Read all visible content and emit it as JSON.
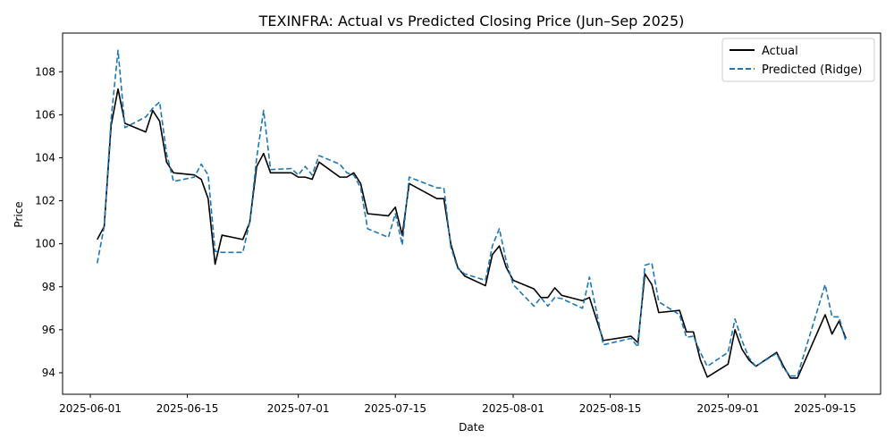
{
  "chart_data": {
    "type": "line",
    "title": "TEXINFRA: Actual vs Predicted Closing Price (Jun–Sep 2025)",
    "xlabel": "Date",
    "ylabel": "Price",
    "x_ticks": [
      "2025-06-01",
      "2025-06-15",
      "2025-07-01",
      "2025-07-15",
      "2025-08-01",
      "2025-08-15",
      "2025-09-01",
      "2025-09-15"
    ],
    "y_ticks": [
      94,
      96,
      98,
      100,
      102,
      104,
      106,
      108
    ],
    "xlim": [
      "2025-05-28",
      "2025-09-23"
    ],
    "ylim": [
      93.0,
      109.8
    ],
    "grid": false,
    "legend_position": "top-right",
    "series": [
      {
        "name": "Actual",
        "color": "#000000",
        "style": "solid",
        "x": [
          "2025-06-02",
          "2025-06-03",
          "2025-06-04",
          "2025-06-05",
          "2025-06-06",
          "2025-06-09",
          "2025-06-10",
          "2025-06-11",
          "2025-06-12",
          "2025-06-13",
          "2025-06-16",
          "2025-06-17",
          "2025-06-18",
          "2025-06-19",
          "2025-06-20",
          "2025-06-23",
          "2025-06-24",
          "2025-06-25",
          "2025-06-26",
          "2025-06-27",
          "2025-06-30",
          "2025-07-01",
          "2025-07-02",
          "2025-07-03",
          "2025-07-04",
          "2025-07-07",
          "2025-07-08",
          "2025-07-09",
          "2025-07-10",
          "2025-07-11",
          "2025-07-14",
          "2025-07-15",
          "2025-07-16",
          "2025-07-17",
          "2025-07-21",
          "2025-07-22",
          "2025-07-23",
          "2025-07-24",
          "2025-07-25",
          "2025-07-28",
          "2025-07-29",
          "2025-07-30",
          "2025-07-31",
          "2025-08-01",
          "2025-08-04",
          "2025-08-05",
          "2025-08-06",
          "2025-08-07",
          "2025-08-08",
          "2025-08-11",
          "2025-08-12",
          "2025-08-14",
          "2025-08-18",
          "2025-08-19",
          "2025-08-20",
          "2025-08-21",
          "2025-08-22",
          "2025-08-25",
          "2025-08-26",
          "2025-08-27",
          "2025-08-28",
          "2025-08-29",
          "2025-09-01",
          "2025-09-02",
          "2025-09-03",
          "2025-09-04",
          "2025-09-05",
          "2025-09-08",
          "2025-09-09",
          "2025-09-10",
          "2025-09-11",
          "2025-09-15",
          "2025-09-16",
          "2025-09-17",
          "2025-09-18"
        ],
        "y": [
          100.2,
          100.8,
          105.5,
          107.2,
          105.6,
          105.2,
          106.2,
          105.7,
          103.8,
          103.3,
          103.2,
          103.0,
          102.1,
          99.05,
          100.4,
          100.2,
          101.0,
          103.6,
          104.2,
          103.3,
          103.3,
          103.1,
          103.1,
          103.0,
          103.8,
          103.1,
          103.1,
          103.3,
          102.8,
          101.4,
          101.3,
          101.7,
          100.4,
          102.8,
          102.1,
          102.1,
          100.0,
          98.9,
          98.5,
          98.05,
          99.5,
          99.9,
          98.9,
          98.3,
          97.9,
          97.5,
          97.5,
          97.95,
          97.6,
          97.35,
          97.5,
          95.5,
          95.7,
          95.4,
          98.6,
          98.1,
          96.8,
          96.9,
          95.9,
          95.9,
          94.6,
          93.8,
          94.4,
          96.0,
          95.1,
          94.6,
          94.3,
          94.95,
          94.3,
          93.75,
          93.75,
          96.7,
          95.8,
          96.4,
          95.6
        ]
      },
      {
        "name": "Predicted (Ridge)",
        "color": "#1f77b4",
        "style": "dashed",
        "x": [
          "2025-06-02",
          "2025-06-03",
          "2025-06-04",
          "2025-06-05",
          "2025-06-06",
          "2025-06-09",
          "2025-06-10",
          "2025-06-11",
          "2025-06-12",
          "2025-06-13",
          "2025-06-16",
          "2025-06-17",
          "2025-06-18",
          "2025-06-19",
          "2025-06-20",
          "2025-06-23",
          "2025-06-24",
          "2025-06-25",
          "2025-06-26",
          "2025-06-27",
          "2025-06-30",
          "2025-07-01",
          "2025-07-02",
          "2025-07-03",
          "2025-07-04",
          "2025-07-07",
          "2025-07-08",
          "2025-07-09",
          "2025-07-10",
          "2025-07-11",
          "2025-07-14",
          "2025-07-15",
          "2025-07-16",
          "2025-07-17",
          "2025-07-21",
          "2025-07-22",
          "2025-07-23",
          "2025-07-24",
          "2025-07-25",
          "2025-07-28",
          "2025-07-29",
          "2025-07-30",
          "2025-07-31",
          "2025-08-01",
          "2025-08-04",
          "2025-08-05",
          "2025-08-06",
          "2025-08-07",
          "2025-08-08",
          "2025-08-11",
          "2025-08-12",
          "2025-08-14",
          "2025-08-18",
          "2025-08-19",
          "2025-08-20",
          "2025-08-21",
          "2025-08-22",
          "2025-08-25",
          "2025-08-26",
          "2025-08-27",
          "2025-08-28",
          "2025-08-29",
          "2025-09-01",
          "2025-09-02",
          "2025-09-03",
          "2025-09-04",
          "2025-09-05",
          "2025-09-08",
          "2025-09-09",
          "2025-09-10",
          "2025-09-11",
          "2025-09-15",
          "2025-09-16",
          "2025-09-17",
          "2025-09-18"
        ],
        "y": [
          99.1,
          100.8,
          105.8,
          109.0,
          105.4,
          105.9,
          106.3,
          106.6,
          104.2,
          102.9,
          103.1,
          103.7,
          103.2,
          99.65,
          99.6,
          99.6,
          101.0,
          104.0,
          106.2,
          103.45,
          103.5,
          103.2,
          103.6,
          103.2,
          104.1,
          103.7,
          103.3,
          103.2,
          102.6,
          100.7,
          100.3,
          101.4,
          99.95,
          103.1,
          102.6,
          102.6,
          99.85,
          98.85,
          98.6,
          98.3,
          99.9,
          100.7,
          99.2,
          98.1,
          97.1,
          97.5,
          97.1,
          97.5,
          97.45,
          97.0,
          98.45,
          95.3,
          95.6,
          95.2,
          99.0,
          99.1,
          97.3,
          96.7,
          95.65,
          95.7,
          94.95,
          94.3,
          94.95,
          96.5,
          95.5,
          94.7,
          94.3,
          94.9,
          94.2,
          93.85,
          93.85,
          98.1,
          96.6,
          96.6,
          95.45
        ]
      }
    ]
  }
}
